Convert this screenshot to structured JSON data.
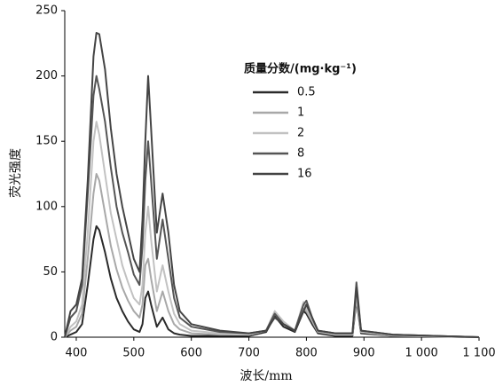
{
  "chart_data": {
    "type": "line",
    "x_label": "波长/mm",
    "y_label": "荧光强度",
    "legend_title": "质量分数/(mg·kg⁻¹)",
    "legend_position": "upper right",
    "x": [
      380,
      390,
      400,
      410,
      420,
      430,
      435,
      440,
      450,
      460,
      470,
      480,
      490,
      500,
      510,
      515,
      520,
      525,
      530,
      540,
      550,
      560,
      570,
      580,
      600,
      650,
      700,
      730,
      745,
      760,
      780,
      795,
      800,
      810,
      820,
      850,
      880,
      887,
      895,
      950,
      1100
    ],
    "series": [
      {
        "name": "0.5",
        "color": "#2a2a2a",
        "values": [
          0,
          2,
          4,
          10,
          40,
          75,
          85,
          82,
          65,
          45,
          30,
          20,
          12,
          6,
          4,
          10,
          30,
          35,
          25,
          8,
          15,
          6,
          3,
          2,
          1,
          1,
          1,
          4,
          16,
          8,
          4,
          20,
          18,
          10,
          3,
          1,
          1,
          28,
          3,
          1,
          0
        ]
      },
      {
        "name": "1",
        "color": "#a8a8a8",
        "values": [
          0,
          5,
          8,
          18,
          60,
          110,
          125,
          120,
          95,
          70,
          52,
          38,
          28,
          20,
          15,
          25,
          55,
          60,
          45,
          20,
          35,
          20,
          10,
          6,
          3,
          2,
          2,
          5,
          18,
          10,
          5,
          22,
          20,
          12,
          4,
          2,
          2,
          30,
          4,
          1,
          0
        ]
      },
      {
        "name": "2",
        "color": "#c2c2c2",
        "values": [
          0,
          8,
          12,
          25,
          80,
          150,
          165,
          155,
          125,
          95,
          75,
          55,
          42,
          30,
          25,
          40,
          80,
          100,
          75,
          35,
          55,
          35,
          18,
          10,
          5,
          3,
          2,
          5,
          20,
          12,
          5,
          27,
          22,
          14,
          5,
          2,
          2,
          35,
          4,
          2,
          0
        ]
      },
      {
        "name": "8",
        "color": "#555555",
        "values": [
          0,
          15,
          20,
          40,
          110,
          185,
          200,
          190,
          165,
          130,
          100,
          80,
          65,
          48,
          40,
          70,
          120,
          150,
          120,
          60,
          90,
          60,
          30,
          15,
          8,
          4,
          3,
          5,
          18,
          10,
          5,
          25,
          28,
          15,
          5,
          3,
          3,
          42,
          5,
          2,
          0
        ]
      },
      {
        "name": "16",
        "color": "#444444",
        "values": [
          0,
          20,
          25,
          45,
          120,
          215,
          233,
          232,
          205,
          160,
          125,
          100,
          80,
          60,
          50,
          90,
          150,
          200,
          160,
          80,
          110,
          80,
          40,
          20,
          10,
          5,
          3,
          5,
          15,
          10,
          5,
          20,
          25,
          15,
          5,
          3,
          3,
          38,
          5,
          2,
          0
        ]
      }
    ],
    "xlim": [
      380,
      1100
    ],
    "ylim": [
      0,
      250
    ],
    "xticks": [
      400,
      500,
      600,
      700,
      800,
      900,
      {
        "value": 1000,
        "label": "1 000"
      },
      {
        "value": 1100,
        "label": "1 100"
      }
    ],
    "yticks": [
      0,
      50,
      100,
      150,
      200,
      250
    ],
    "grid": false
  }
}
